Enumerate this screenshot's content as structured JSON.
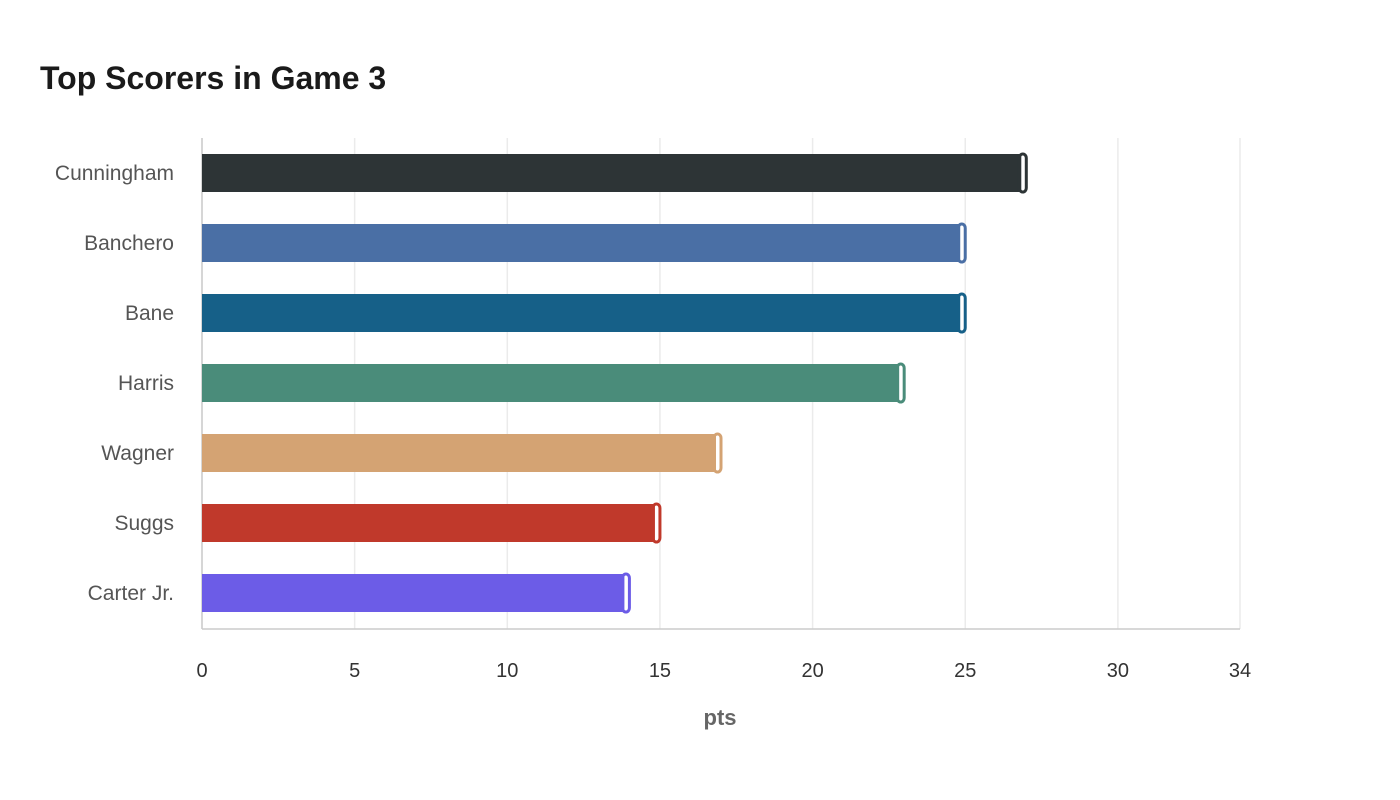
{
  "title": "Top Scorers in Game 3",
  "chart_data": {
    "type": "bar",
    "orientation": "horizontal",
    "title": "Top Scorers in Game 3",
    "xlabel": "pts",
    "ylabel": "",
    "categories": [
      "Cunningham",
      "Banchero",
      "Bane",
      "Harris",
      "Wagner",
      "Suggs",
      "Carter Jr."
    ],
    "values": [
      27,
      25,
      25,
      23,
      17,
      15,
      14
    ],
    "colors": [
      "#2d3436",
      "#4a6fa5",
      "#166088",
      "#4a8c7a",
      "#d4a373",
      "#c0392b",
      "#6c5ce7"
    ],
    "xlim": [
      0,
      34
    ],
    "xticks": [
      0,
      5,
      10,
      15,
      20,
      25,
      30,
      34
    ],
    "grid": true
  }
}
